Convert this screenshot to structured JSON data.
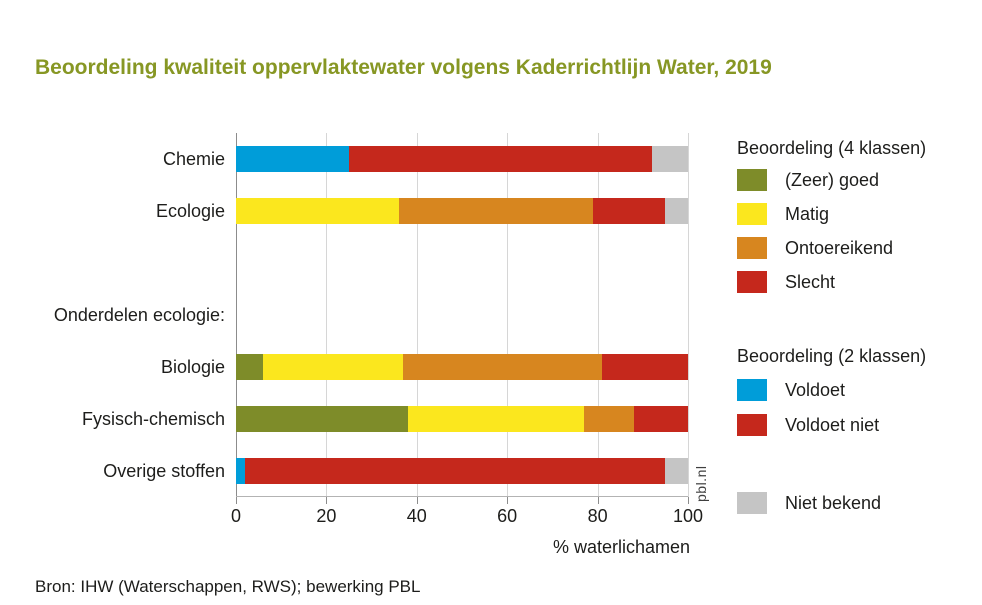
{
  "title": "Beoordeling kwaliteit oppervlaktewater volgens Kaderrichtlijn Water, 2019",
  "source": "Bron: IHW (Waterschappen, RWS); bewerking PBL",
  "watermark": "pbl.nl",
  "colors": {
    "title": "#879724",
    "zeer_goed": "#7e8c29",
    "matig": "#fbe71e",
    "ontoereikend": "#d7861f",
    "slecht": "#c5281c",
    "voldoet": "#009dd9",
    "voldoet_niet": "#c5281c",
    "niet_bekend": "#c5c5c5"
  },
  "legend": {
    "groups": [
      {
        "title": "Beoordeling (4 klassen)",
        "items": [
          {
            "label": "(Zeer) goed",
            "color": "#7e8c29"
          },
          {
            "label": "Matig",
            "color": "#fbe71e"
          },
          {
            "label": "Ontoereikend",
            "color": "#d7861f"
          },
          {
            "label": "Slecht",
            "color": "#c5281c"
          }
        ]
      },
      {
        "title": "Beoordeling (2 klassen)",
        "items": [
          {
            "label": "Voldoet",
            "color": "#009dd9"
          },
          {
            "label": "Voldoet niet",
            "color": "#c5281c"
          }
        ]
      },
      {
        "title": "",
        "items": [
          {
            "label": "Niet bekend",
            "color": "#c5c5c5"
          }
        ]
      }
    ]
  },
  "chart_data": {
    "type": "bar",
    "orientation": "horizontal",
    "stacked": true,
    "title": "Beoordeling kwaliteit oppervlaktewater volgens Kaderrichtlijn Water, 2019",
    "xlabel": "% waterlichamen",
    "xlim": [
      0,
      100
    ],
    "xticks": [
      0,
      20,
      40,
      60,
      80,
      100
    ],
    "grid": true,
    "legend_position": "right",
    "rows": [
      {
        "label": "Chemie",
        "subheader": false,
        "segments": [
          {
            "label": "Voldoet",
            "value": 25,
            "color": "#009dd9"
          },
          {
            "label": "Voldoet niet",
            "value": 67,
            "color": "#c5281c"
          },
          {
            "label": "Niet bekend",
            "value": 8,
            "color": "#c5c5c5"
          }
        ]
      },
      {
        "label": "Ecologie",
        "subheader": false,
        "segments": [
          {
            "label": "Matig",
            "value": 36,
            "color": "#fbe71e"
          },
          {
            "label": "Ontoereikend",
            "value": 43,
            "color": "#d7861f"
          },
          {
            "label": "Slecht",
            "value": 16,
            "color": "#c5281c"
          },
          {
            "label": "Niet bekend",
            "value": 5,
            "color": "#c5c5c5"
          }
        ]
      },
      {
        "label": "",
        "subheader": false,
        "segments": []
      },
      {
        "label": "Onderdelen ecologie:",
        "subheader": true,
        "segments": []
      },
      {
        "label": "Biologie",
        "subheader": false,
        "segments": [
          {
            "label": "(Zeer) goed",
            "value": 6,
            "color": "#7e8c29"
          },
          {
            "label": "Matig",
            "value": 31,
            "color": "#fbe71e"
          },
          {
            "label": "Ontoereikend",
            "value": 44,
            "color": "#d7861f"
          },
          {
            "label": "Slecht",
            "value": 19,
            "color": "#c5281c"
          }
        ]
      },
      {
        "label": "Fysisch-chemisch",
        "subheader": false,
        "segments": [
          {
            "label": "(Zeer) goed",
            "value": 38,
            "color": "#7e8c29"
          },
          {
            "label": "Matig",
            "value": 39,
            "color": "#fbe71e"
          },
          {
            "label": "Ontoereikend",
            "value": 11,
            "color": "#d7861f"
          },
          {
            "label": "Slecht",
            "value": 12,
            "color": "#c5281c"
          }
        ]
      },
      {
        "label": "Overige stoffen",
        "subheader": false,
        "segments": [
          {
            "label": "Voldoet",
            "value": 2,
            "color": "#009dd9"
          },
          {
            "label": "Voldoet niet",
            "value": 93,
            "color": "#c5281c"
          },
          {
            "label": "Niet bekend",
            "value": 5,
            "color": "#c5c5c5"
          }
        ]
      }
    ]
  }
}
